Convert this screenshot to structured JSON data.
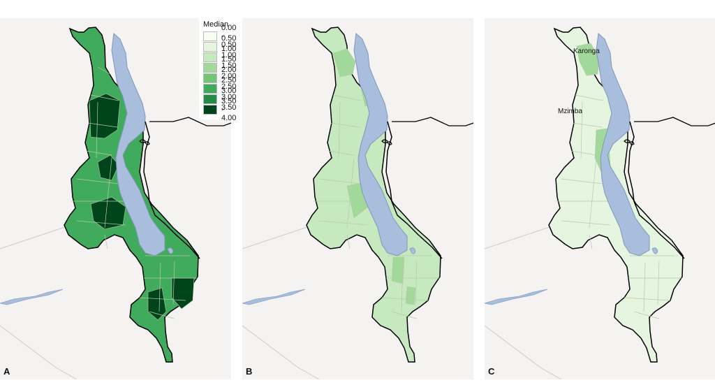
{
  "legend": {
    "title": "Median",
    "items": [
      {
        "label": "0.00 - 0.50",
        "color": "#f7fcf5"
      },
      {
        "label": "0.50 - 1.00",
        "color": "#e5f5e0"
      },
      {
        "label": "1.00 - 1.50",
        "color": "#c7e9c0"
      },
      {
        "label": "1.50 - 2.00",
        "color": "#a1d99b"
      },
      {
        "label": "2.00 - 2.50",
        "color": "#74c476"
      },
      {
        "label": "2.50 - 3.00",
        "color": "#41ab5d"
      },
      {
        "label": "3.00 - 3.50",
        "color": "#238b45"
      },
      {
        "label": "3.50 - 4.00",
        "color": "#00441b"
      }
    ]
  },
  "panels": [
    {
      "letter": "A",
      "base_color": "#41ab5d",
      "dark_color": "#00441b",
      "labels": []
    },
    {
      "letter": "B",
      "base_color": "#c7e9c0",
      "dark_color": "#a1d99b",
      "labels": []
    },
    {
      "letter": "C",
      "base_color": "#e5f5e0",
      "dark_color": "#a1d99b",
      "labels": [
        {
          "text": "Karonga"
        },
        {
          "text": "Mzimba"
        }
      ]
    }
  ],
  "colors": {
    "lake": "#a8bedc",
    "background": "#f5f2f2",
    "border": "#000000"
  }
}
